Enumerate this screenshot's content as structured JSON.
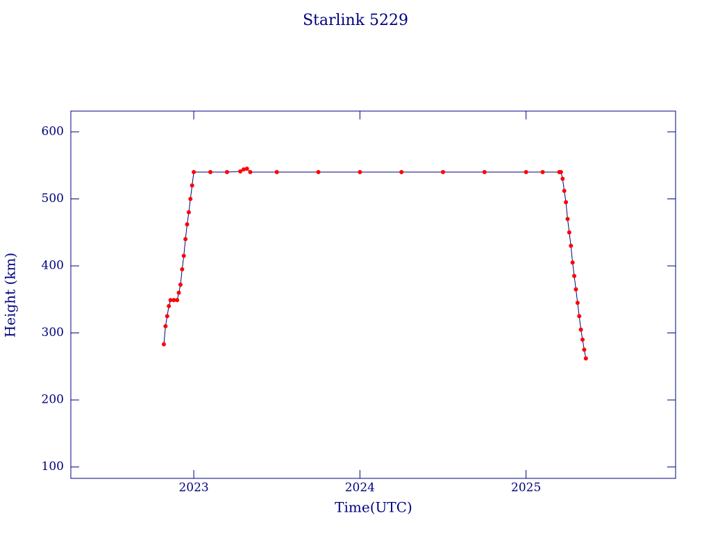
{
  "chart_data": {
    "type": "line",
    "title": "Starlink 5229",
    "x_label": "Time(UTC)",
    "y_label": "Height (km)",
    "series": [
      {
        "name": "Height",
        "color": "#ff0000",
        "line_color": "#000080",
        "x": [
          2022.82,
          2022.83,
          2022.84,
          2022.85,
          2022.86,
          2022.88,
          2022.9,
          2022.91,
          2022.92,
          2022.93,
          2022.94,
          2022.95,
          2022.96,
          2022.97,
          2022.98,
          2022.99,
          2023.0,
          2023.1,
          2023.2,
          2023.28,
          2023.3,
          2023.32,
          2023.34,
          2023.5,
          2023.75,
          2024.0,
          2024.25,
          2024.5,
          2024.75,
          2025.0,
          2025.1,
          2025.2,
          2025.21,
          2025.22,
          2025.23,
          2025.24,
          2025.25,
          2025.26,
          2025.27,
          2025.28,
          2025.29,
          2025.3,
          2025.31,
          2025.32,
          2025.33,
          2025.34,
          2025.35,
          2025.36
        ],
        "values": [
          283,
          310,
          325,
          340,
          349,
          349,
          349,
          360,
          372,
          395,
          415,
          440,
          462,
          480,
          500,
          520,
          540,
          540,
          540,
          541,
          544,
          545,
          540,
          540,
          540,
          540,
          540,
          540,
          540,
          540,
          540,
          540,
          540,
          530,
          512,
          495,
          470,
          450,
          430,
          405,
          385,
          365,
          345,
          325,
          305,
          290,
          275,
          262
        ]
      }
    ],
    "xlim": [
      2022.26,
      2025.9
    ],
    "xticks": [
      2023,
      2024,
      2025
    ],
    "ylim": [
      83,
      631
    ],
    "yticks": [
      100,
      200,
      300,
      400,
      500,
      600
    ],
    "text_color": "#000080"
  }
}
